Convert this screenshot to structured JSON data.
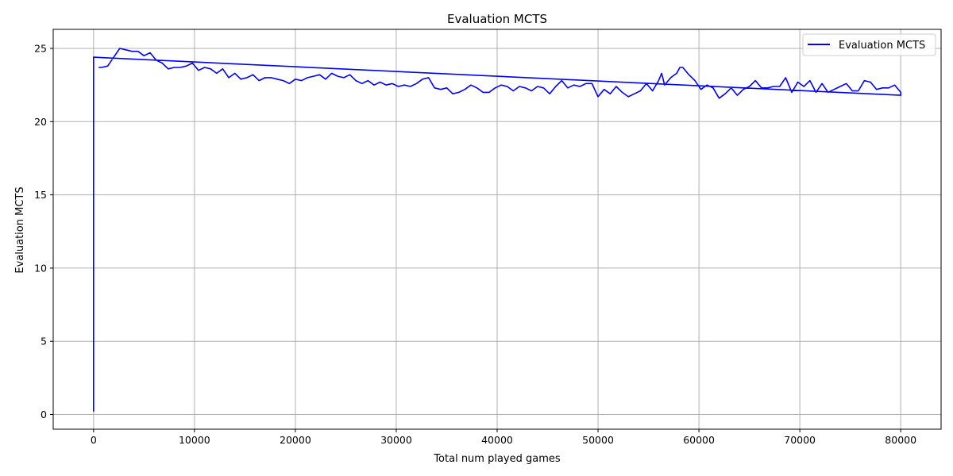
{
  "chart_data": {
    "type": "line",
    "title": "Evaluation MCTS",
    "xlabel": "Total num played games",
    "ylabel": "Evaluation MCTS",
    "xlim": [
      -4000,
      84000
    ],
    "ylim": [
      -1.0,
      26.3
    ],
    "xticks": [
      0,
      10000,
      20000,
      30000,
      40000,
      50000,
      60000,
      70000,
      80000
    ],
    "yticks": [
      0,
      5,
      10,
      15,
      20,
      25
    ],
    "grid": true,
    "legend": "top-right",
    "colors": {
      "series": "#0000ff",
      "grid": "#b0b0b0",
      "axis": "#000000"
    },
    "series": [
      {
        "name": "Evaluation MCTS",
        "x": [
          0,
          0,
          80000,
          80000,
          79400,
          78800,
          78200,
          77600,
          77000,
          76400,
          75800,
          75200,
          74600,
          74000,
          73400,
          72800,
          72200,
          71600,
          71000,
          70400,
          69800,
          69200,
          68600,
          68000,
          67400,
          66800,
          66200,
          65600,
          65000,
          64400,
          63800,
          63200,
          62600,
          62000,
          61400,
          60800,
          60200,
          59600,
          59000,
          58400,
          58100,
          57800,
          57200,
          56600,
          56300,
          56000,
          55400,
          54800,
          54200,
          53600,
          53000,
          52400,
          51800,
          51200,
          50600,
          50000,
          49400,
          48800,
          48200,
          47600,
          47000,
          46400,
          45800,
          45200,
          44600,
          44000,
          43400,
          42800,
          42200,
          41600,
          41000,
          40400,
          39800,
          39200,
          38600,
          38000,
          37400,
          36800,
          36200,
          35600,
          35000,
          34400,
          33800,
          33200,
          32600,
          32000,
          31400,
          30800,
          30200,
          29600,
          29000,
          28400,
          27800,
          27200,
          26600,
          26000,
          25400,
          24800,
          24200,
          23600,
          23000,
          22400,
          21800,
          21200,
          20600,
          20000,
          19400,
          18800,
          18200,
          17600,
          17000,
          16400,
          15800,
          15200,
          14600,
          14000,
          13400,
          12800,
          12200,
          11600,
          11000,
          10400,
          9800,
          9200,
          8600,
          8000,
          7400,
          6800,
          6200,
          5600,
          5000,
          4400,
          3800,
          3200,
          2600,
          2000,
          1400,
          800,
          500
        ],
        "y": [
          0.2,
          24.4,
          21.8,
          22.0,
          22.5,
          22.3,
          22.3,
          22.2,
          22.7,
          22.8,
          22.1,
          22.1,
          22.6,
          22.4,
          22.2,
          22.0,
          22.6,
          22.0,
          22.8,
          22.4,
          22.7,
          22.0,
          23.0,
          22.4,
          22.4,
          22.3,
          22.3,
          22.8,
          22.4,
          22.2,
          21.8,
          22.3,
          21.9,
          21.6,
          22.3,
          22.5,
          22.2,
          22.8,
          23.2,
          23.7,
          23.7,
          23.3,
          23.0,
          22.5,
          23.3,
          22.8,
          22.1,
          22.6,
          22.1,
          21.9,
          21.7,
          22.0,
          22.4,
          21.9,
          22.2,
          21.7,
          22.6,
          22.6,
          22.4,
          22.5,
          22.3,
          22.8,
          22.4,
          21.9,
          22.3,
          22.4,
          22.1,
          22.3,
          22.4,
          22.1,
          22.4,
          22.5,
          22.3,
          22.0,
          22.0,
          22.3,
          22.5,
          22.2,
          22.0,
          21.9,
          22.3,
          22.2,
          22.3,
          23.0,
          22.9,
          22.6,
          22.4,
          22.5,
          22.4,
          22.6,
          22.5,
          22.7,
          22.5,
          22.8,
          22.6,
          22.8,
          23.2,
          23.0,
          23.1,
          23.3,
          22.9,
          23.2,
          23.1,
          23.0,
          22.8,
          22.9,
          22.6,
          22.8,
          22.9,
          23.0,
          23.0,
          22.8,
          23.2,
          23.0,
          22.9,
          23.3,
          23.0,
          23.6,
          23.3,
          23.6,
          23.7,
          23.5,
          24.0,
          23.8,
          23.7,
          23.7,
          23.6,
          24.0,
          24.2,
          24.7,
          24.5,
          24.8,
          24.8,
          24.9,
          25.0,
          24.4,
          23.8,
          23.7,
          23.7
        ]
      }
    ]
  }
}
